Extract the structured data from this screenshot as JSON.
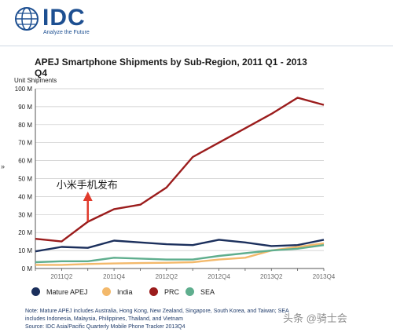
{
  "header": {
    "logo_text": "IDC",
    "tagline": "Analyze the Future"
  },
  "chart_data": {
    "type": "line",
    "title": "APEJ Smartphone Shipments by Sub-Region, 2011 Q1 - 2013 Q4",
    "ylabel": "Unit Shipments",
    "xlabel": "",
    "ylim": [
      0,
      100
    ],
    "y_ticks": [
      "0 M",
      "10 M",
      "20 M",
      "30 M",
      "40 M",
      "50 M",
      "60 M",
      "70 M",
      "80 M",
      "90 M",
      "100 M"
    ],
    "x_tick_labels": [
      "2011Q2",
      "2011Q4",
      "2012Q2",
      "2012Q4",
      "2013Q2",
      "2013Q4"
    ],
    "grid": true,
    "legend_position": "bottom",
    "series": [
      {
        "name": "Mature APEJ",
        "color": "#1b2f5c",
        "values": [
          9.5,
          12,
          11.5,
          15.5,
          14.5,
          13.5,
          13,
          16,
          14.5,
          12.5,
          13,
          16
        ]
      },
      {
        "name": "India",
        "color": "#f3b96b",
        "values": [
          2,
          2,
          2.5,
          2.8,
          3,
          3.2,
          3.5,
          5,
          6,
          10,
          12,
          14
        ]
      },
      {
        "name": "PRC",
        "color": "#9b1c1c",
        "values": [
          16.5,
          15,
          26,
          33,
          35.5,
          45,
          62,
          70,
          78,
          86,
          95,
          91
        ]
      },
      {
        "name": "SEA",
        "color": "#5fae8e",
        "values": [
          3.5,
          4,
          4,
          6,
          5.5,
          5,
          5,
          7,
          8.5,
          10,
          11,
          13
        ]
      }
    ],
    "annotation": {
      "text": "小米手机发布",
      "x_index": 2
    }
  },
  "note": {
    "line1": "Note: Mature APEJ includes Australia, Hong Kong, New Zealand, Singapore, South Korea, and Taiwan; SEA",
    "line2": "includes Indonesia, Malaysia, Philippines, Thailand, and Vietnam",
    "line3": "Source: IDC Asia/Pacific Quarterly Mobile Phone Tracker 2013Q4"
  },
  "watermark": "头条 @骑士会",
  "side_mark": "»"
}
